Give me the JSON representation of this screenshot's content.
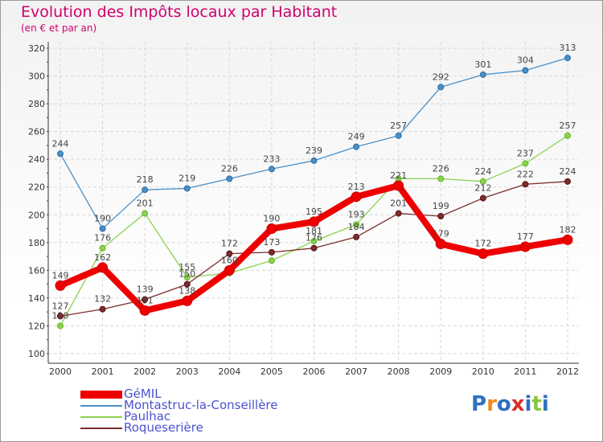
{
  "title": "Evolution des Impôts locaux par Habitant",
  "subtitle": "(en € et par an)",
  "logo": {
    "text": "Proxiti",
    "colors": [
      "#2f6fc0",
      "#f08a1c",
      "#2f6fc0",
      "#d8302a",
      "#2f6fc0",
      "#8bc53f",
      "#2f6fc0"
    ]
  },
  "chart_data": {
    "type": "line",
    "x": [
      "2000",
      "2001",
      "2002",
      "2003",
      "2004",
      "2005",
      "2006",
      "2007",
      "2008",
      "2009",
      "2010",
      "2011",
      "2012"
    ],
    "ylim": [
      100,
      320
    ],
    "yticks": [
      100,
      120,
      140,
      160,
      180,
      200,
      220,
      240,
      260,
      280,
      300,
      320
    ],
    "grid": true,
    "legend_position": "bottom-left",
    "series": [
      {
        "name": "Montastruc-la-Conseillère",
        "color": "#4a90c8",
        "values": [
          244,
          190,
          218,
          219,
          226,
          233,
          239,
          249,
          257,
          292,
          301,
          304,
          313
        ]
      },
      {
        "name": "Paulhac",
        "color": "#8bd34e",
        "values": [
          120,
          176,
          201,
          155,
          158,
          167,
          181,
          193,
          226,
          226,
          224,
          237,
          257
        ]
      },
      {
        "name": "Roqueserière",
        "color": "#7a2d2d",
        "values": [
          127,
          132,
          139,
          150,
          172,
          173,
          176,
          184,
          201,
          199,
          212,
          222,
          224
        ]
      },
      {
        "name": "GéMIL",
        "color": "#ee0000",
        "values": [
          149,
          162,
          131,
          138,
          160,
          190,
          195,
          213,
          221,
          179,
          172,
          177,
          182
        ]
      }
    ],
    "legend_order": [
      "GéMIL",
      "Montastruc-la-Conseillère",
      "Paulhac",
      "Roqueserière"
    ],
    "data_labels": {
      "Montastruc-la-Conseillère": [
        "244",
        "190",
        "218",
        "219",
        "226",
        "233",
        "239",
        "249",
        "257",
        "292",
        "301",
        "304",
        "313"
      ],
      "Paulhac": [
        "120",
        "176",
        "201",
        "155",
        "",
        "",
        "181",
        "193",
        "",
        "226",
        "224",
        "237",
        "257"
      ],
      "Roqueserière": [
        "127",
        "132",
        "139",
        "150",
        "172",
        "173",
        "176",
        "184",
        "201",
        "199",
        "212",
        "222",
        "224"
      ],
      "GéMIL": [
        "149",
        "162",
        "131",
        "138",
        "160",
        "190",
        "195",
        "213",
        "221",
        "179",
        "172",
        "177",
        "182"
      ]
    }
  }
}
